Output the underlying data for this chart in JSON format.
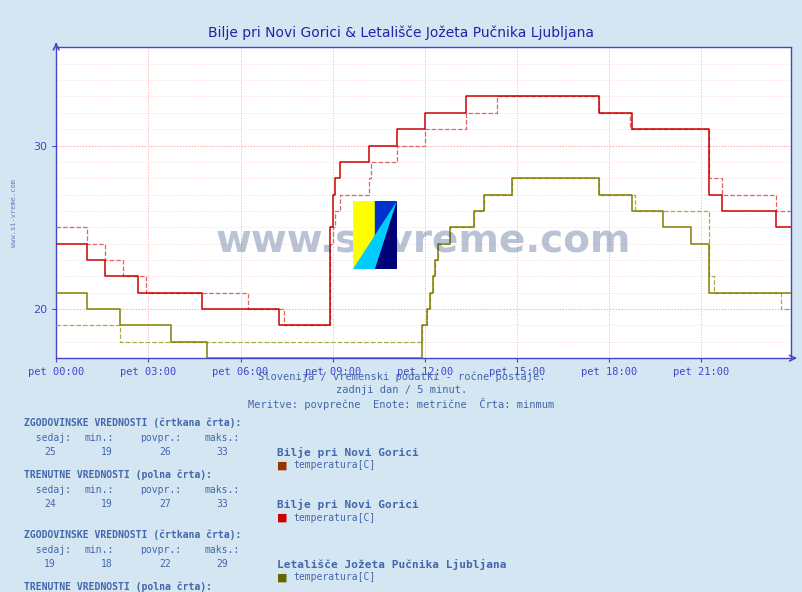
{
  "title": "Bilje pri Novi Gorici & Letališče Jožeta Pučnika Ljubljana",
  "subtitle1": "Slovenija / vremenski podatki - ročne postaje.",
  "subtitle2": "zadnji dan / 5 minut.",
  "subtitle3": "Meritve: povprečne  Enote: metrične  Črta: minmum",
  "xlabel_ticks": [
    "pet 00:00",
    "pet 03:00",
    "pet 06:00",
    "pet 09:00",
    "pet 12:00",
    "pet 15:00",
    "pet 18:00",
    "pet 21:00"
  ],
  "ylabel_ticks": [
    20,
    30
  ],
  "ylim": [
    17.0,
    36.0
  ],
  "xlim": [
    0,
    287
  ],
  "background_color": "#d5e6f3",
  "plot_background": "#ffffff",
  "axis_color": "#4444cc",
  "text_color": "#4466aa",
  "watermark": "www.si-vreme.com",
  "color_bilje_solid": "#cc0000",
  "color_bilje_dashed": "#dd6666",
  "color_lju_solid": "#808000",
  "color_lju_dashed": "#aaaa44",
  "color_bilje_box_hist": "#993300",
  "color_bilje_box_curr": "#cc0000",
  "color_lju_box_hist": "#666600",
  "color_lju_box_curr": "#999900",
  "n_points": 288,
  "bilje_hist": [
    25,
    25,
    25,
    25,
    25,
    25,
    25,
    25,
    25,
    25,
    25,
    25,
    24,
    24,
    24,
    24,
    24,
    24,
    24,
    23,
    23,
    23,
    23,
    23,
    23,
    23,
    22,
    22,
    22,
    22,
    22,
    22,
    22,
    22,
    22,
    21,
    21,
    21,
    21,
    21,
    21,
    21,
    21,
    21,
    21,
    21,
    21,
    21,
    21,
    21,
    21,
    21,
    21,
    21,
    21,
    21,
    21,
    21,
    21,
    21,
    21,
    21,
    21,
    21,
    21,
    21,
    21,
    21,
    21,
    21,
    21,
    21,
    21,
    21,
    21,
    20,
    20,
    20,
    20,
    20,
    20,
    20,
    20,
    20,
    20,
    20,
    20,
    20,
    20,
    19,
    19,
    19,
    19,
    19,
    19,
    19,
    19,
    19,
    19,
    19,
    19,
    19,
    19,
    19,
    19,
    19,
    19,
    24,
    25,
    26,
    26,
    27,
    27,
    27,
    27,
    27,
    27,
    27,
    27,
    27,
    27,
    27,
    28,
    29,
    29,
    29,
    29,
    29,
    29,
    29,
    29,
    29,
    29,
    30,
    30,
    30,
    30,
    30,
    30,
    30,
    30,
    30,
    30,
    30,
    31,
    31,
    31,
    31,
    31,
    31,
    31,
    31,
    31,
    31,
    31,
    31,
    31,
    31,
    31,
    31,
    32,
    32,
    32,
    32,
    32,
    32,
    32,
    32,
    32,
    32,
    32,
    32,
    33,
    33,
    33,
    33,
    33,
    33,
    33,
    33,
    33,
    33,
    33,
    33,
    33,
    33,
    33,
    33,
    33,
    33,
    33,
    33,
    33,
    33,
    33,
    33,
    33,
    33,
    33,
    33,
    33,
    33,
    33,
    33,
    33,
    33,
    33,
    33,
    33,
    33,
    33,
    33,
    32,
    32,
    32,
    32,
    32,
    32,
    32,
    32,
    32,
    32,
    32,
    32,
    31,
    31,
    31,
    31,
    31,
    31,
    31,
    31,
    31,
    31,
    31,
    31,
    31,
    31,
    31,
    31,
    31,
    31,
    31,
    31,
    31,
    31,
    31,
    31,
    31,
    31,
    31,
    31,
    31,
    31,
    31,
    28,
    28,
    28,
    28,
    28,
    27,
    27,
    27,
    27,
    27,
    27,
    27,
    27,
    27,
    27,
    27,
    27,
    27,
    27,
    27,
    27,
    27,
    27,
    27,
    27,
    27,
    26,
    26,
    26,
    26,
    26,
    26,
    26
  ],
  "bilje_curr": [
    24,
    24,
    24,
    24,
    24,
    24,
    24,
    24,
    24,
    24,
    24,
    24,
    23,
    23,
    23,
    23,
    23,
    23,
    23,
    22,
    22,
    22,
    22,
    22,
    22,
    22,
    22,
    22,
    22,
    22,
    22,
    22,
    21,
    21,
    21,
    21,
    21,
    21,
    21,
    21,
    21,
    21,
    21,
    21,
    21,
    21,
    21,
    21,
    21,
    21,
    21,
    21,
    21,
    21,
    21,
    21,
    21,
    20,
    20,
    20,
    20,
    20,
    20,
    20,
    20,
    20,
    20,
    20,
    20,
    20,
    20,
    20,
    20,
    20,
    20,
    20,
    20,
    20,
    20,
    20,
    20,
    20,
    20,
    20,
    20,
    20,
    20,
    19,
    19,
    19,
    19,
    19,
    19,
    19,
    19,
    19,
    19,
    19,
    19,
    19,
    19,
    19,
    19,
    19,
    19,
    19,
    19,
    25,
    27,
    28,
    28,
    29,
    29,
    29,
    29,
    29,
    29,
    29,
    29,
    29,
    29,
    29,
    30,
    30,
    30,
    30,
    30,
    30,
    30,
    30,
    30,
    30,
    30,
    31,
    31,
    31,
    31,
    31,
    31,
    31,
    31,
    31,
    31,
    31,
    32,
    32,
    32,
    32,
    32,
    32,
    32,
    32,
    32,
    32,
    32,
    32,
    32,
    32,
    32,
    32,
    33,
    33,
    33,
    33,
    33,
    33,
    33,
    33,
    33,
    33,
    33,
    33,
    33,
    33,
    33,
    33,
    33,
    33,
    33,
    33,
    33,
    33,
    33,
    33,
    33,
    33,
    33,
    33,
    33,
    33,
    33,
    33,
    33,
    33,
    33,
    33,
    33,
    33,
    33,
    33,
    33,
    33,
    33,
    33,
    33,
    33,
    33,
    33,
    33,
    33,
    33,
    33,
    32,
    32,
    32,
    32,
    32,
    32,
    32,
    32,
    32,
    32,
    32,
    32,
    32,
    31,
    31,
    31,
    31,
    31,
    31,
    31,
    31,
    31,
    31,
    31,
    31,
    31,
    31,
    31,
    31,
    31,
    31,
    31,
    31,
    31,
    31,
    31,
    31,
    31,
    31,
    31,
    31,
    31,
    31,
    27,
    27,
    27,
    27,
    27,
    26,
    26,
    26,
    26,
    26,
    26,
    26,
    26,
    26,
    26,
    26,
    26,
    26,
    26,
    26,
    26,
    26,
    26,
    26,
    26,
    26,
    25,
    25,
    25,
    25,
    25,
    25,
    25
  ],
  "lju_hist": [
    19,
    19,
    19,
    19,
    19,
    19,
    19,
    19,
    19,
    19,
    19,
    19,
    19,
    19,
    19,
    19,
    19,
    19,
    19,
    19,
    19,
    19,
    19,
    19,
    19,
    18,
    18,
    18,
    18,
    18,
    18,
    18,
    18,
    18,
    18,
    18,
    18,
    18,
    18,
    18,
    18,
    18,
    18,
    18,
    18,
    18,
    18,
    18,
    18,
    18,
    18,
    18,
    18,
    18,
    18,
    18,
    18,
    18,
    18,
    18,
    18,
    18,
    18,
    18,
    18,
    18,
    18,
    18,
    18,
    18,
    18,
    18,
    18,
    18,
    18,
    18,
    18,
    18,
    18,
    18,
    18,
    18,
    18,
    18,
    18,
    18,
    18,
    18,
    18,
    18,
    18,
    18,
    18,
    18,
    18,
    18,
    18,
    18,
    18,
    18,
    18,
    18,
    18,
    18,
    18,
    18,
    18,
    18,
    18,
    18,
    18,
    18,
    18,
    18,
    18,
    18,
    18,
    18,
    18,
    18,
    18,
    18,
    18,
    18,
    18,
    18,
    18,
    18,
    18,
    18,
    18,
    18,
    18,
    18,
    18,
    18,
    18,
    18,
    18,
    18,
    18,
    18,
    18,
    19,
    19,
    20,
    21,
    22,
    23,
    24,
    24,
    24,
    24,
    24,
    25,
    25,
    25,
    25,
    25,
    25,
    25,
    25,
    25,
    26,
    26,
    26,
    26,
    27,
    27,
    27,
    27,
    27,
    27,
    27,
    27,
    27,
    27,
    27,
    28,
    28,
    28,
    28,
    28,
    28,
    28,
    28,
    28,
    28,
    28,
    28,
    28,
    28,
    28,
    28,
    28,
    28,
    28,
    28,
    28,
    28,
    28,
    28,
    28,
    28,
    28,
    28,
    28,
    28,
    28,
    28,
    28,
    28,
    27,
    27,
    27,
    27,
    27,
    27,
    27,
    27,
    27,
    27,
    27,
    27,
    27,
    27,
    26,
    26,
    26,
    26,
    26,
    26,
    26,
    26,
    26,
    26,
    26,
    26,
    26,
    26,
    26,
    26,
    26,
    26,
    26,
    26,
    26,
    26,
    26,
    26,
    26,
    26,
    26,
    26,
    26,
    22,
    22,
    21,
    21,
    21,
    21,
    21,
    21,
    21,
    21,
    21,
    21,
    21,
    21,
    21,
    21,
    21,
    21,
    21,
    21,
    21,
    21,
    21,
    21,
    21,
    21,
    21,
    21,
    20,
    20,
    20,
    20,
    20
  ],
  "lju_curr": [
    21,
    21,
    21,
    21,
    21,
    21,
    21,
    21,
    21,
    21,
    21,
    21,
    20,
    20,
    20,
    20,
    20,
    20,
    20,
    20,
    20,
    20,
    20,
    20,
    20,
    19,
    19,
    19,
    19,
    19,
    19,
    19,
    19,
    19,
    19,
    19,
    19,
    19,
    19,
    19,
    19,
    19,
    19,
    19,
    19,
    18,
    18,
    18,
    18,
    18,
    18,
    18,
    18,
    18,
    18,
    18,
    18,
    18,
    18,
    17,
    17,
    17,
    17,
    17,
    17,
    17,
    17,
    17,
    17,
    17,
    17,
    17,
    17,
    17,
    17,
    17,
    17,
    17,
    17,
    17,
    17,
    17,
    17,
    17,
    17,
    17,
    17,
    17,
    17,
    17,
    17,
    17,
    17,
    17,
    17,
    17,
    17,
    17,
    17,
    17,
    17,
    17,
    17,
    17,
    17,
    17,
    17,
    17,
    17,
    17,
    17,
    17,
    17,
    17,
    17,
    17,
    17,
    17,
    17,
    17,
    17,
    17,
    17,
    17,
    17,
    17,
    17,
    17,
    17,
    17,
    17,
    17,
    17,
    17,
    17,
    17,
    17,
    17,
    17,
    17,
    17,
    17,
    17,
    19,
    19,
    20,
    21,
    22,
    23,
    24,
    24,
    24,
    24,
    24,
    25,
    25,
    25,
    25,
    25,
    25,
    25,
    25,
    25,
    26,
    26,
    26,
    26,
    27,
    27,
    27,
    27,
    27,
    27,
    27,
    27,
    27,
    27,
    27,
    28,
    28,
    28,
    28,
    28,
    28,
    28,
    28,
    28,
    28,
    28,
    28,
    28,
    28,
    28,
    28,
    28,
    28,
    28,
    28,
    28,
    28,
    28,
    28,
    28,
    28,
    28,
    28,
    28,
    28,
    28,
    28,
    28,
    28,
    27,
    27,
    27,
    27,
    27,
    27,
    27,
    27,
    27,
    27,
    27,
    27,
    27,
    26,
    26,
    26,
    26,
    26,
    26,
    26,
    26,
    26,
    26,
    26,
    26,
    25,
    25,
    25,
    25,
    25,
    25,
    25,
    25,
    25,
    25,
    25,
    24,
    24,
    24,
    24,
    24,
    24,
    24,
    21,
    21,
    21,
    21,
    21,
    21,
    21,
    21,
    21,
    21,
    21,
    21,
    21,
    21,
    21,
    21,
    21,
    21,
    21,
    21,
    21,
    21,
    21,
    21,
    21,
    21,
    21,
    21,
    21,
    21,
    21,
    21,
    21
  ]
}
